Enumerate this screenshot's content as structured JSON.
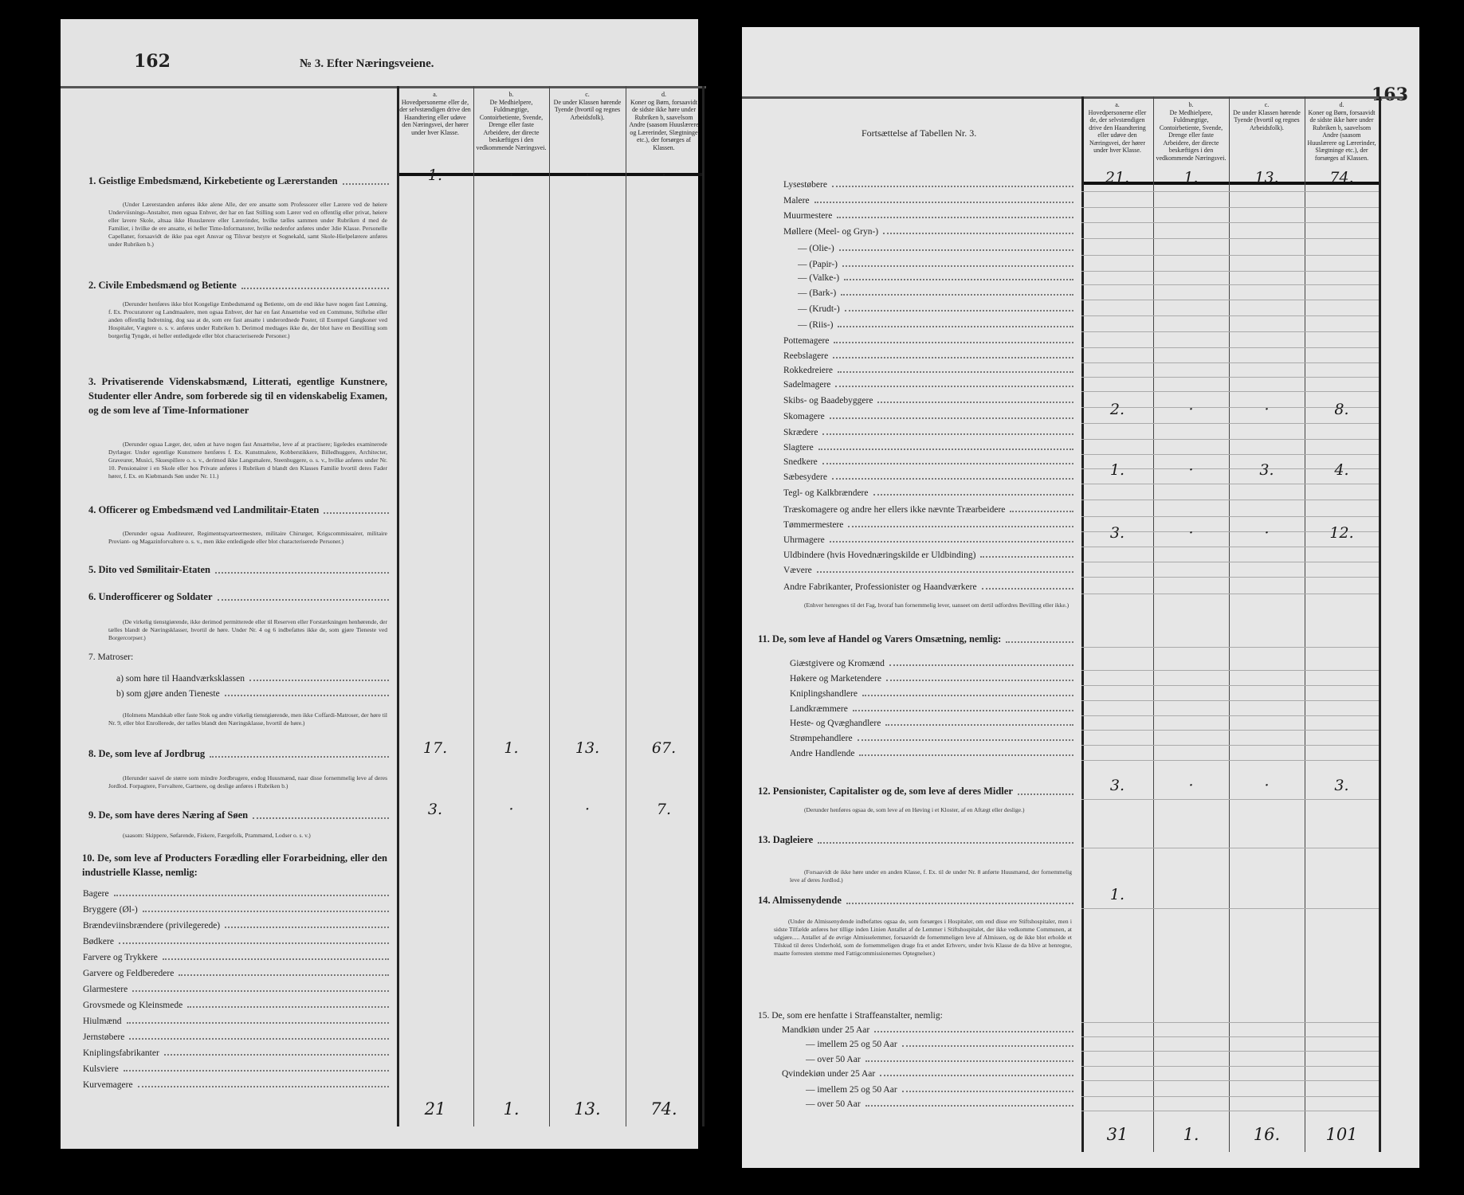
{
  "left": {
    "page_number": "162",
    "title": "№ 3. Efter Næringsveiene.",
    "columns": [
      {
        "letter": "a.",
        "text": "Hovedpersonerne eller de, der selvstændigen drive den Haandtering eller udøve den Næringsvei, der hører under hver Klasse."
      },
      {
        "letter": "b.",
        "text": "De Medhielpere, Fuldmægtige, Contoirbetiente, Svende, Drenge eller faste Arbeidere, der directe beskæftiges i den vedkommende Næringsvei."
      },
      {
        "letter": "c.",
        "text": "De under Klassen hørende Tyende (hvortil og regnes Arbeidsfolk)."
      },
      {
        "letter": "d.",
        "text": "Koner og Børn, forsaavidt de sidste ikke høre under Rubriken b, saavelsom Andre (saasom Huuslærere og Lærerinder, Slægtninge etc.), der forsørges af Klassen."
      }
    ],
    "rows": [
      {
        "label": "1. Geistlige Embedsmænd, Kirkebetiente og Lærerstanden",
        "values": [
          "1.",
          "·",
          "·",
          "·"
        ]
      },
      {
        "label": "2. Civile Embedsmænd og Betiente"
      },
      {
        "label": "3. Privatiserende Videnskabsmænd, Litterati, egentlige Kunstnere, Studenter eller Andre, som forberede sig til en videnskabelig Examen, og de som leve af Time-Informationer"
      },
      {
        "label": "4. Officerer og Embedsmænd ved Landmilitair-Etaten"
      },
      {
        "label": "5. Dito ved Sømilitair-Etaten"
      },
      {
        "label": "6. Underofficerer og Soldater"
      },
      {
        "label": "7. Matroser:"
      },
      {
        "label": "a) som høre til Haandværksklassen"
      },
      {
        "label": "b) som gjøre anden Tieneste"
      },
      {
        "label": "8. De, som leve af Jordbrug",
        "values": [
          "17.",
          "1.",
          "13.",
          "67."
        ]
      },
      {
        "label": "9. De, som have deres Næring af Søen",
        "values": [
          "3.",
          "·",
          "·",
          "7."
        ]
      },
      {
        "label": "10. De, som leve af Producters Forædling eller Forarbeidning, eller den industrielle Klasse, nemlig:"
      },
      {
        "label": "Bagere"
      },
      {
        "label": "Bryggere (Øl-)"
      },
      {
        "label": "Brændeviinsbrændere (privilegerede)"
      },
      {
        "label": "Bødkere"
      },
      {
        "label": "Farvere og Trykkere"
      },
      {
        "label": "Garvere og Feldberedere"
      },
      {
        "label": "Glarmestere"
      },
      {
        "label": "Grovsmede og Kleinsmede"
      },
      {
        "label": "Hiulmænd"
      },
      {
        "label": "Jernstøbere"
      },
      {
        "label": "Kniplingsfabrikanter"
      },
      {
        "label": "Kulsviere"
      },
      {
        "label": "Kurvemagere"
      }
    ],
    "notes": [
      "(Under Lærerstanden anføres ikke alene Alle, der ere ansatte som Professorer eller Lærere ved de høiere Underviisnings-Anstalter, men ogsaa Enhver, der har en fast Stilling som Lærer ved en offentlig eller privat, høiere eller lavere Skole, altsaa ikke Huuslærere eller Lærerinder, hvilke tælles sammen under Rubriken d med de Familier, i hvilke de ere ansatte, ei heller Time-Informatorer, hvilke nedenfor anføres under 3die Klasse. Personelle Capellaner, forsaavidt de ikke paa eget Ansvar og Tilsvar bestyre et Sognekald, samt Skole-Hielpelærere anføres under Rubriken b.)",
      "(Derunder henføres ikke blot Kongelige Embedsmænd og Betiente, om de end ikke have nogen fast Lønning, f. Ex. Procuratorer og Landmaalere, men ogsaa Enhver, der har en fast Ansættelse ved en Commune, Stiftelse eller anden offentlig Indretning, dog saa at de, som ere fast ansatte i underordnede Poster, til Exempel Gangkoner ved Hospitaler, Vægtere o. s. v. anføres under Rubriken b. Derimod medtages ikke de, der blot have en Bestilling som borgerlig Tyngde, ei heller entledigede eller blot characteriserede Personer.)",
      "(Derunder ogsaa Læger, der, uden at have nogen fast Ansættelse, leve af at practisere; ligeledes examinerede Dyrlæger. Under egentlige Kunstnere henføres f. Ex. Kunstmalere, Kobberstikkere, Billedhuggere, Architecter, Graveurer, Musici, Skuespillere o. s. v., derimod ikke Langsmalere, Steenhuggere, o. s. v., hvilke anføres under Nr. 10. Pensionairer i en Skole eller hos Private anføres i Rubriken d blandt den Klasses Familie hvortil deres Fader hører, f. Ex. en Kiøbmands Søn under Nr. 11.)",
      "(Derunder ogsaa Auditeurer, Regimentsqvarteermestere, militaire Chirurger, Krigscommissairer, militaire Proviant- og Magazinforvaltere o. s. v., men ikke entledigede eller blot characteriserede Personer.)",
      "(De virkelig tienstgiørende, ikke derimod permitterede eller til Reserven eller Forstærkningen henhørende, der tælles blandt de Næringsklasser, hvortil de høre. Under Nr. 4 og 6 indbefattes ikke de, som gjøre Tieneste ved Borgercorpser.)",
      "(Holmens Mandskab eller faste Stok og andre virkelig tienstgiørende, men ikke Coffardi-Matroser, der høre til Nr. 9, eller blot Enrollerede, der tælles blandt den Næringsklasse, hvortil de høre.)",
      "(Herunder saavel de større som mindre Jordbrugere, endog Huusmænd, naar disse fornemmelig leve af deres Jordlod. Forpagtere, Forvaltere, Gartnere, og deslige anføres i Rubriken b.)",
      "(saasom: Skippere, Søfarende, Fiskere, Færgefolk, Prammænd, Lodser o. s. v.)"
    ],
    "totals": [
      "21",
      "1.",
      "13.",
      "74."
    ]
  },
  "right": {
    "page_number": "163",
    "title": "Fortsættelse af Tabellen Nr. 3.",
    "rows": [
      {
        "label": "Lysestøbere",
        "values": [
          "21.",
          "1.",
          "13.",
          "74."
        ]
      },
      {
        "label": "Malere"
      },
      {
        "label": "Muurmestere"
      },
      {
        "label": "Møllere (Meel- og Gryn-)"
      },
      {
        "label": "— (Olie-)"
      },
      {
        "label": "— (Papir-)"
      },
      {
        "label": "— (Valke-)"
      },
      {
        "label": "— (Bark-)"
      },
      {
        "label": "— (Krudt-)"
      },
      {
        "label": "— (Riis-)"
      },
      {
        "label": "Pottemagere"
      },
      {
        "label": "Reebslagere"
      },
      {
        "label": "Rokkedreiere"
      },
      {
        "label": "Sadelmagere"
      },
      {
        "label": "Skibs- og Baadebyggere"
      },
      {
        "label": "Skomagere",
        "values": [
          "2.",
          "·",
          "·",
          "8."
        ]
      },
      {
        "label": "Skrædere"
      },
      {
        "label": "Slagtere"
      },
      {
        "label": "Snedkere"
      },
      {
        "label": "Sæbesydere",
        "values": [
          "1.",
          "·",
          "3.",
          "4."
        ]
      },
      {
        "label": "Tegl- og Kalkbrændere"
      },
      {
        "label": "Træskomagere og andre her ellers ikke nævnte Træarbeidere"
      },
      {
        "label": "Tømmermestere"
      },
      {
        "label": "Uhrmagere",
        "values": [
          "3.",
          "·",
          "·",
          "12."
        ]
      },
      {
        "label": "Uldbindere (hvis Hovednæringskilde er Uldbinding)"
      },
      {
        "label": "Vævere"
      },
      {
        "label": "Andre Fabrikanter, Professionister og Haandværkere"
      },
      {
        "label": "11. De, som leve af Handel og Varers Omsætning, nemlig:"
      },
      {
        "label": "Giæstgivere og Kromænd"
      },
      {
        "label": "Høkere og Marketendere"
      },
      {
        "label": "Kniplingshandlere"
      },
      {
        "label": "Landkræmmere"
      },
      {
        "label": "Heste- og Qvæghandlere"
      },
      {
        "label": "Strømpehandlere"
      },
      {
        "label": "Andre Handlende"
      },
      {
        "label": "12. Pensionister, Capitalister og de, som leve af deres Midler",
        "values": [
          "3.",
          "·",
          "·",
          "3."
        ]
      },
      {
        "label": "13. Dagleiere"
      },
      {
        "label": "14. Almissenydende",
        "values": [
          "1.",
          "",
          "",
          ""
        ]
      },
      {
        "label": "15. De, som ere henfatte i Straffeanstalter, nemlig:"
      },
      {
        "label": "Mandkiøn under 25 Aar"
      },
      {
        "label": "— imellem 25 og 50 Aar"
      },
      {
        "label": "— over 50 Aar"
      },
      {
        "label": "Qvindekiøn under 25 Aar"
      },
      {
        "label": "— imellem 25 og 50 Aar"
      },
      {
        "label": "— over 50 Aar"
      }
    ],
    "notes": [
      "(Enhver henregnes til det Fag, hvoraf han fornemmelig lever, uanseet om dertil udfordres Bevilling eller ikke.)",
      "(Derunder henføres ogsaa de, som leve af en Høving i et Kloster, af en Aftægt eller deslige.)",
      "(Forsaavidt de ikke høre under en anden Klasse, f. Ex. til de under Nr. 8 anførte Huusmænd, der fornemmelig leve af deres Jordlod.)",
      "(Under de Almissenydende indbefattes ogsaa de, som forsørges i Hospitaler, om end disse ere Stiftshospitaler, men i sidste Tilfælde anføres her tillige inden Linien Antallet af de Lemmer i Stiftshospitalet, der ikke vedkomme Communen, at udgjøre..... Antallet af de øvrige Almisselemmer, forsaavidt de fornemmeligen leve af Almissen, og de ikke blot erholde et Tilskud til deres Underhold, som de fornemmeligen drage fra et andet Erhverv, under hvis Klasse de da blive at henregne, maatte forresten stemme med Fattigcommissionernes Optegnelser.)"
    ],
    "totals": [
      "31",
      "1.",
      "16.",
      "101"
    ]
  }
}
